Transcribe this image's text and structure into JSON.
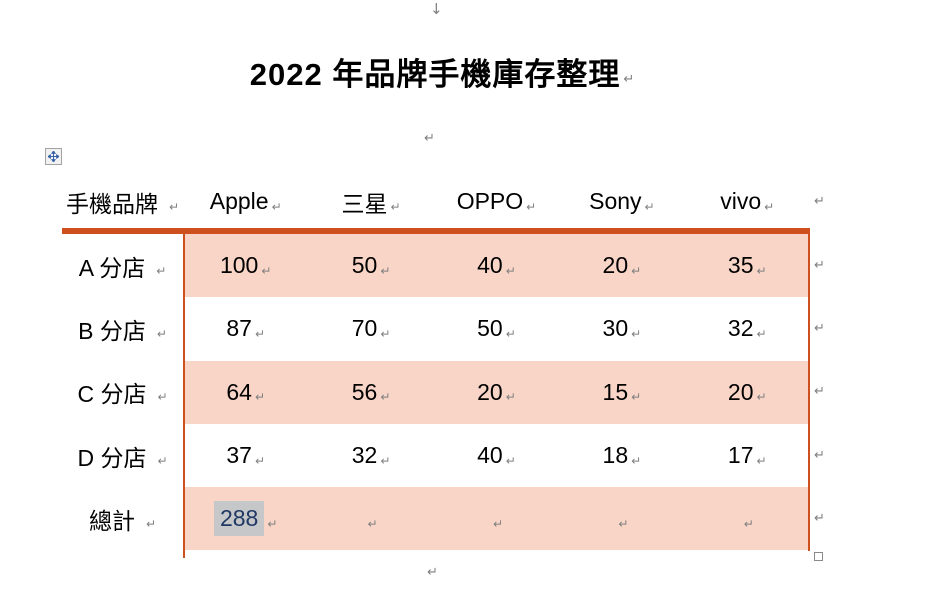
{
  "title": "2022 年品牌手機庫存整理",
  "marks": {
    "down_arrow": "↓",
    "line_break": "↵"
  },
  "table": {
    "headers": [
      "手機品牌",
      "Apple",
      "三星",
      "OPPO",
      "Sony",
      "vivo"
    ],
    "rows": [
      {
        "label": "A 分店",
        "values": [
          "100",
          "50",
          "40",
          "20",
          "35"
        ],
        "shaded": true
      },
      {
        "label": "B 分店",
        "values": [
          "87",
          "70",
          "50",
          "30",
          "32"
        ],
        "shaded": false
      },
      {
        "label": "C 分店",
        "values": [
          "64",
          "56",
          "20",
          "15",
          "20"
        ],
        "shaded": true
      },
      {
        "label": "D 分店",
        "values": [
          "37",
          "32",
          "40",
          "18",
          "17"
        ],
        "shaded": false
      },
      {
        "label": "總計",
        "values": [
          "288",
          "",
          "",
          "",
          ""
        ],
        "shaded": true
      }
    ],
    "selected": {
      "row_index": 4,
      "value_index": 0,
      "value": "288"
    },
    "colors": {
      "row_shade_fill": "#F9D5C7",
      "border_orange": "#CE501E",
      "field_shading_gray": "#C6C7C8",
      "selected_text_navy": "#1F3864",
      "formatting_mark_gray": "#7F7F7F"
    }
  }
}
